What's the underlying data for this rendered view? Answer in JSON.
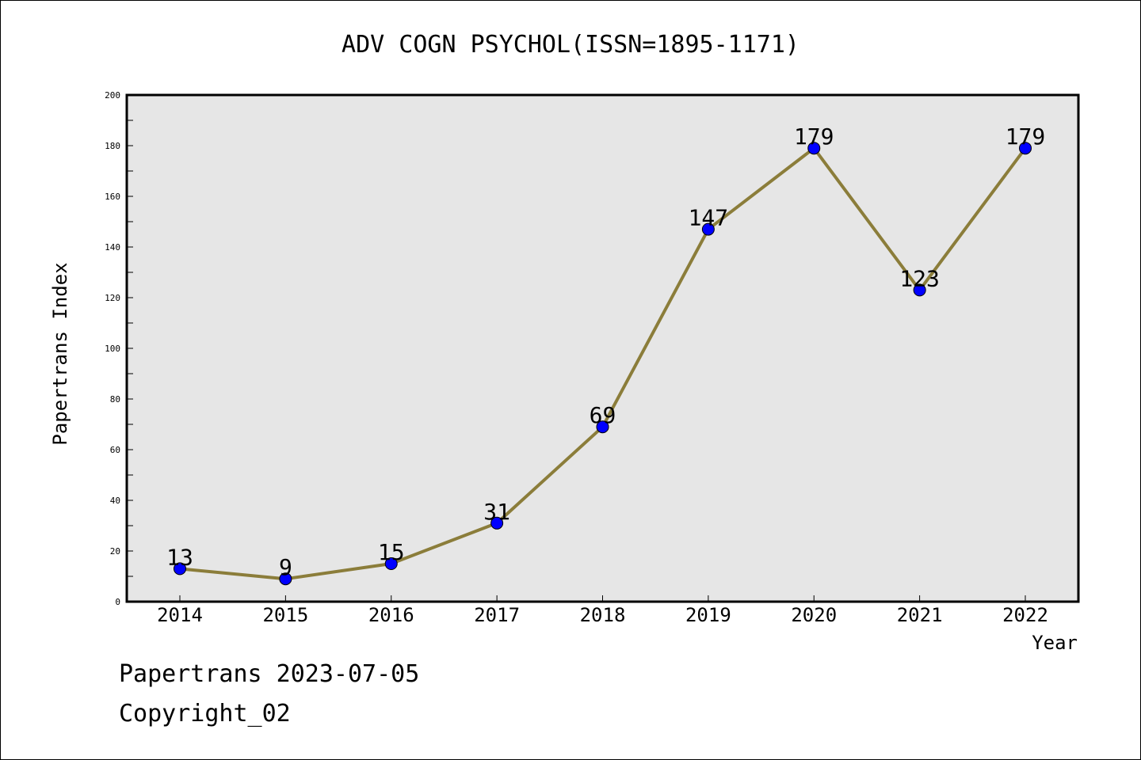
{
  "chart_data": {
    "type": "line",
    "title": "ADV COGN PSYCHOL(ISSN=1895-1171)",
    "xlabel": "Year",
    "ylabel": "Papertrans Index",
    "categories": [
      "2014",
      "2015",
      "2016",
      "2017",
      "2018",
      "2019",
      "2020",
      "2021",
      "2022"
    ],
    "series": [
      {
        "values": [
          13,
          9,
          15,
          31,
          69,
          147,
          179,
          123,
          179
        ]
      }
    ],
    "ylim": [
      0,
      200
    ],
    "yticks": [
      "0",
      "20",
      "40",
      "60",
      "80",
      "100",
      "120",
      "140",
      "160",
      "180",
      "200"
    ],
    "grid": false,
    "colors": {
      "line": "#8b7d3a",
      "marker": "#0000ff",
      "plot_bg": "#e6e6e6"
    }
  },
  "footer": {
    "line1": "Papertrans 2023-07-05",
    "line2": "Copyright_02"
  }
}
